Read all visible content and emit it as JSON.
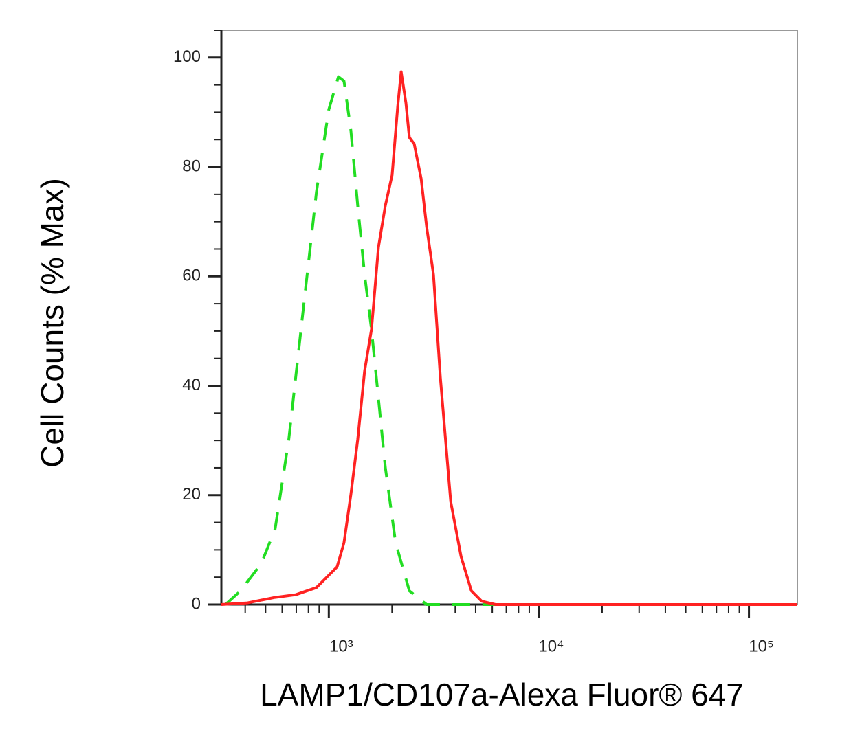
{
  "chart_data": {
    "type": "line",
    "xlabel": "LAMP1/CD107a-Alexa Fluor® 647",
    "ylabel": "Cell Counts (% Max)",
    "xscale": "log",
    "xlim": [
      308,
      170000
    ],
    "ylim": [
      0,
      105
    ],
    "xticks": [
      {
        "value": 1000,
        "label": "10³"
      },
      {
        "value": 10000,
        "label": "10⁴"
      },
      {
        "value": 100000,
        "label": "10⁵"
      }
    ],
    "xminorticks": [
      400,
      500,
      600,
      700,
      800,
      900,
      2000,
      3000,
      4000,
      5000,
      6000,
      7000,
      8000,
      9000,
      20000,
      30000,
      40000,
      50000,
      60000,
      70000,
      80000,
      90000
    ],
    "yticks": [
      0,
      20,
      40,
      60,
      80,
      100
    ],
    "yminorticks": [
      5,
      10,
      15,
      25,
      30,
      35,
      45,
      50,
      55,
      65,
      70,
      75,
      85,
      90,
      95,
      105
    ],
    "series": [
      {
        "color": "#22dd22",
        "dash": true,
        "x": [
          322,
          380,
          477,
          555,
          645,
          750,
          873,
          1000,
          1111,
          1181,
          1273,
          1373,
          1481,
          1597,
          1722,
          1857,
          2080,
          2418,
          2922,
          5345,
          170000
        ],
        "values": [
          0,
          2.5,
          7.5,
          13.8,
          30.2,
          52.8,
          75.4,
          90.5,
          96.5,
          95.7,
          86.7,
          72.9,
          60.3,
          50.3,
          37.7,
          25.1,
          11.3,
          2.5,
          0,
          0,
          0
        ]
      },
      {
        "color": "#ff2222",
        "dash": false,
        "x": [
          308,
          410,
          555,
          696,
          873,
          1095,
          1181,
          1273,
          1373,
          1481,
          1597,
          1722,
          1857,
          2002,
          2128,
          2210,
          2329,
          2418,
          2551,
          2750,
          2922,
          3150,
          3397,
          3804,
          4262,
          4772,
          5345,
          6215,
          170000
        ],
        "values": [
          0,
          0.3,
          1.3,
          1.8,
          3.1,
          6.9,
          11.3,
          20.1,
          30.2,
          42.7,
          50.3,
          65.3,
          72.9,
          78.5,
          91.1,
          97.4,
          91.7,
          85.4,
          84.2,
          77.9,
          69.1,
          60.3,
          41.5,
          18.8,
          8.8,
          2.5,
          0.6,
          0,
          0
        ]
      }
    ]
  }
}
